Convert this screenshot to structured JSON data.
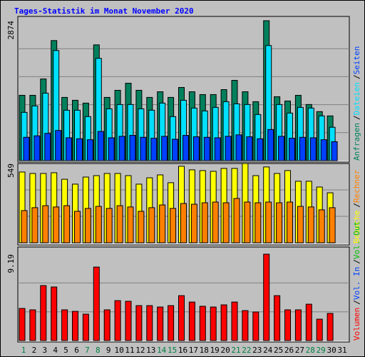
{
  "title": "Tages-Statistik im Monat November 2020",
  "legend_separator": "/",
  "chart_data": [
    {
      "type": "bar",
      "ylim": [
        0,
        2874
      ],
      "yticks": [
        2874
      ],
      "ygrid": [
        574.8,
        1149.6,
        1724.4,
        2299.2
      ],
      "series": [
        {
          "name": "Anfragen",
          "color": "#00805c",
          "values": [
            1342,
            1342,
            1678,
            2466,
            1299,
            1240,
            1182,
            2378,
            1299,
            1445,
            1590,
            1445,
            1299,
            1415,
            1299,
            1503,
            1415,
            1357,
            1357,
            1459,
            1649,
            1415,
            1211,
            2874,
            1313,
            1225,
            1342,
            1153,
            1007,
            919,
            null
          ]
        },
        {
          "name": "Dateien",
          "color": "#00e0ff",
          "values": [
            992,
            1123,
            1386,
            2261,
            1036,
            1036,
            905,
            2101,
            1065,
            1153,
            1153,
            1065,
            1036,
            1182,
            905,
            1240,
            1080,
            1021,
            1094,
            1211,
            1167,
            1153,
            948,
            2364,
            1153,
            977,
            1094,
            1080,
            919,
            686,
            null
          ]
        },
        {
          "name": "Seiten",
          "color": "#0040ff",
          "values": [
            480,
            510,
            560,
            620,
            470,
            450,
            430,
            600,
            470,
            500,
            520,
            480,
            460,
            500,
            440,
            520,
            490,
            480,
            470,
            500,
            530,
            490,
            450,
            640,
            500,
            460,
            480,
            470,
            430,
            390,
            null
          ]
        }
      ]
    },
    {
      "type": "bar",
      "ylim": [
        0,
        549
      ],
      "yticks": [
        549
      ],
      "ygrid": [
        183,
        366
      ],
      "series": [
        {
          "name": "Besuche",
          "color": "#ffff00",
          "values": [
            490,
            480,
            480,
            485,
            440,
            406,
            455,
            465,
            480,
            480,
            465,
            406,
            450,
            470,
            416,
            530,
            505,
            500,
            495,
            515,
            515,
            549,
            465,
            525,
            480,
            500,
            426,
            426,
            386,
            346,
            null
          ]
        },
        {
          "name": "Rechner",
          "color": "#ff8000",
          "values": [
            223,
            243,
            257,
            248,
            257,
            218,
            238,
            252,
            238,
            257,
            248,
            218,
            243,
            262,
            238,
            272,
            267,
            277,
            282,
            277,
            307,
            282,
            277,
            282,
            277,
            282,
            252,
            248,
            228,
            243,
            null
          ]
        }
      ]
    },
    {
      "type": "bar",
      "ylim": [
        0,
        9.19
      ],
      "yticks": [
        9.19
      ],
      "ygrid": [
        3.06,
        6.13
      ],
      "categories": [
        "1",
        "2",
        "3",
        "4",
        "5",
        "6",
        "7",
        "8",
        "9",
        "10",
        "11",
        "12",
        "13",
        "14",
        "15",
        "16",
        "17",
        "18",
        "19",
        "20",
        "21",
        "22",
        "23",
        "24",
        "25",
        "26",
        "27",
        "28",
        "29",
        "30",
        "31"
      ],
      "category_colors": [
        "#008040",
        "#000000",
        "#000000",
        "#000000",
        "#000000",
        "#000000",
        "#008040",
        "#008040",
        "#000000",
        "#000000",
        "#000000",
        "#000000",
        "#000000",
        "#008040",
        "#008040",
        "#000000",
        "#000000",
        "#000000",
        "#000000",
        "#000000",
        "#008040",
        "#008040",
        "#000000",
        "#000000",
        "#000000",
        "#000000",
        "#000000",
        "#008040",
        "#008040",
        "#000000",
        "#000000"
      ],
      "series": [
        {
          "name": "Volumen",
          "color": "#ff0000",
          "values": [
            3.42,
            3.27,
            5.85,
            5.7,
            3.27,
            3.11,
            2.81,
            7.82,
            3.27,
            4.25,
            4.18,
            3.72,
            3.72,
            3.57,
            3.72,
            4.78,
            4.1,
            3.65,
            3.57,
            3.8,
            4.1,
            3.19,
            3.04,
            9.19,
            4.78,
            3.27,
            3.27,
            3.87,
            2.28,
            2.89,
            null
          ]
        },
        {
          "name": "Vol. In",
          "color": "#0040ff",
          "values": [
            null,
            null,
            null,
            null,
            null,
            null,
            null,
            null,
            null,
            null,
            null,
            null,
            null,
            null,
            null,
            null,
            null,
            null,
            null,
            null,
            null,
            null,
            null,
            null,
            null,
            null,
            null,
            null,
            null,
            null,
            null
          ]
        },
        {
          "name": "Vol. Out",
          "color": "#00c000",
          "values": [
            null,
            null,
            null,
            null,
            null,
            null,
            null,
            null,
            null,
            null,
            null,
            null,
            null,
            null,
            null,
            null,
            null,
            null,
            null,
            null,
            null,
            null,
            null,
            null,
            null,
            null,
            null,
            null,
            null,
            null,
            null
          ]
        }
      ]
    }
  ]
}
